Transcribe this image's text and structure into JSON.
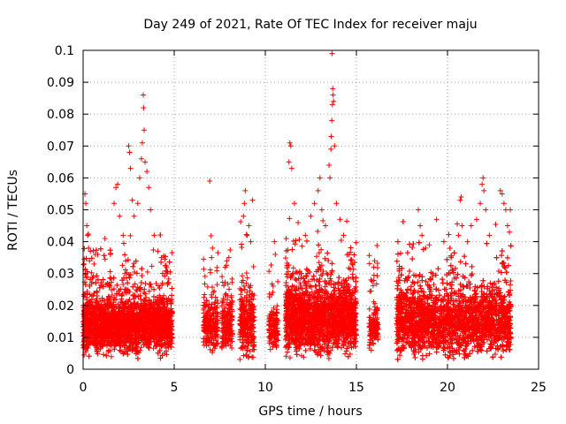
{
  "chart_data": {
    "type": "scatter",
    "title": "Day 249 of 2021, Rate Of TEC Index for receiver maju",
    "xlabel": "GPS time / hours",
    "ylabel": "ROTI / TECUs",
    "xlim": [
      0,
      25
    ],
    "ylim": [
      0,
      0.1
    ],
    "x_ticks": [
      "0",
      "5",
      "10",
      "15",
      "20",
      "25"
    ],
    "y_ticks": [
      "0",
      "0.01",
      "0.02",
      "0.03",
      "0.04",
      "0.05",
      "0.06",
      "0.07",
      "0.08",
      "0.09",
      "0.1"
    ],
    "x_tick_values": [
      0,
      5,
      10,
      15,
      20,
      25
    ],
    "y_tick_values": [
      0,
      0.01,
      0.02,
      0.03,
      0.04,
      0.05,
      0.06,
      0.07,
      0.08,
      0.09,
      0.1
    ],
    "grid": true,
    "marker": "+",
    "series_color": "#ff0000",
    "segments": [
      {
        "x_start": 0.0,
        "x_end": 4.9,
        "base_mean": 0.014,
        "spread": 0.004,
        "density": 300
      },
      {
        "x_start": 6.6,
        "x_end": 7.4,
        "base_mean": 0.014,
        "spread": 0.004,
        "density": 140
      },
      {
        "x_start": 7.6,
        "x_end": 8.2,
        "base_mean": 0.014,
        "spread": 0.004,
        "density": 140
      },
      {
        "x_start": 8.6,
        "x_end": 9.4,
        "base_mean": 0.015,
        "spread": 0.005,
        "density": 160
      },
      {
        "x_start": 10.2,
        "x_end": 10.7,
        "base_mean": 0.012,
        "spread": 0.003,
        "density": 120
      },
      {
        "x_start": 11.1,
        "x_end": 15.0,
        "base_mean": 0.016,
        "spread": 0.005,
        "density": 280
      },
      {
        "x_start": 15.7,
        "x_end": 16.2,
        "base_mean": 0.013,
        "spread": 0.003,
        "density": 120
      },
      {
        "x_start": 17.2,
        "x_end": 23.5,
        "base_mean": 0.015,
        "spread": 0.005,
        "density": 300
      }
    ],
    "high_points": [
      [
        0.1,
        0.055
      ],
      [
        0.15,
        0.052
      ],
      [
        0.2,
        0.045
      ],
      [
        0.25,
        0.042
      ],
      [
        0.3,
        0.038
      ],
      [
        0.05,
        0.033
      ],
      [
        0.35,
        0.034
      ],
      [
        0.4,
        0.037
      ],
      [
        0.6,
        0.033
      ],
      [
        0.8,
        0.036
      ],
      [
        1.2,
        0.041
      ],
      [
        1.5,
        0.036
      ],
      [
        1.7,
        0.052
      ],
      [
        1.8,
        0.057
      ],
      [
        1.9,
        0.058
      ],
      [
        2.0,
        0.048
      ],
      [
        2.2,
        0.042
      ],
      [
        2.5,
        0.07
      ],
      [
        2.55,
        0.068
      ],
      [
        2.6,
        0.063
      ],
      [
        2.7,
        0.053
      ],
      [
        2.8,
        0.048
      ],
      [
        3.0,
        0.052
      ],
      [
        3.1,
        0.06
      ],
      [
        3.2,
        0.066
      ],
      [
        3.25,
        0.071
      ],
      [
        3.3,
        0.086
      ],
      [
        3.32,
        0.082
      ],
      [
        3.35,
        0.075
      ],
      [
        3.4,
        0.065
      ],
      [
        3.5,
        0.062
      ],
      [
        3.6,
        0.057
      ],
      [
        3.7,
        0.05
      ],
      [
        3.9,
        0.042
      ],
      [
        4.1,
        0.037
      ],
      [
        4.3,
        0.035
      ],
      [
        4.6,
        0.03
      ],
      [
        6.95,
        0.059
      ],
      [
        7.1,
        0.038
      ],
      [
        7.05,
        0.035
      ],
      [
        7.8,
        0.032
      ],
      [
        8.0,
        0.035
      ],
      [
        8.9,
        0.056
      ],
      [
        8.85,
        0.052
      ],
      [
        8.8,
        0.048
      ],
      [
        9.1,
        0.045
      ],
      [
        9.2,
        0.04
      ],
      [
        9.3,
        0.053
      ],
      [
        9.0,
        0.042
      ],
      [
        10.5,
        0.04
      ],
      [
        10.55,
        0.036
      ],
      [
        11.35,
        0.071
      ],
      [
        11.4,
        0.07
      ],
      [
        11.3,
        0.065
      ],
      [
        11.45,
        0.063
      ],
      [
        11.6,
        0.052
      ],
      [
        11.8,
        0.046
      ],
      [
        12.2,
        0.042
      ],
      [
        12.5,
        0.048
      ],
      [
        12.7,
        0.052
      ],
      [
        12.9,
        0.056
      ],
      [
        13.0,
        0.06
      ],
      [
        13.1,
        0.05
      ],
      [
        13.3,
        0.045
      ],
      [
        13.5,
        0.064
      ],
      [
        13.55,
        0.06
      ],
      [
        13.6,
        0.069
      ],
      [
        13.62,
        0.073
      ],
      [
        13.65,
        0.078
      ],
      [
        13.68,
        0.083
      ],
      [
        13.7,
        0.088
      ],
      [
        13.72,
        0.086
      ],
      [
        13.75,
        0.084
      ],
      [
        13.66,
        0.099
      ],
      [
        13.8,
        0.07
      ],
      [
        13.9,
        0.052
      ],
      [
        14.1,
        0.047
      ],
      [
        14.3,
        0.042
      ],
      [
        14.6,
        0.036
      ],
      [
        16.0,
        0.034
      ],
      [
        15.8,
        0.028
      ],
      [
        17.3,
        0.027
      ],
      [
        18.4,
        0.05
      ],
      [
        18.5,
        0.045
      ],
      [
        18.6,
        0.042
      ],
      [
        18.8,
        0.038
      ],
      [
        19.0,
        0.039
      ],
      [
        19.4,
        0.047
      ],
      [
        19.8,
        0.04
      ],
      [
        20.2,
        0.035
      ],
      [
        20.6,
        0.042
      ],
      [
        20.7,
        0.053
      ],
      [
        20.75,
        0.054
      ],
      [
        20.8,
        0.045
      ],
      [
        21.1,
        0.04
      ],
      [
        21.3,
        0.045
      ],
      [
        21.6,
        0.047
      ],
      [
        21.8,
        0.052
      ],
      [
        21.9,
        0.058
      ],
      [
        21.95,
        0.06
      ],
      [
        22.0,
        0.056
      ],
      [
        22.1,
        0.05
      ],
      [
        22.3,
        0.042
      ],
      [
        22.7,
        0.035
      ],
      [
        22.9,
        0.056
      ],
      [
        23.0,
        0.055
      ],
      [
        23.1,
        0.052
      ],
      [
        23.2,
        0.05
      ],
      [
        23.3,
        0.045
      ],
      [
        23.4,
        0.043
      ],
      [
        23.45,
        0.05
      ]
    ]
  }
}
